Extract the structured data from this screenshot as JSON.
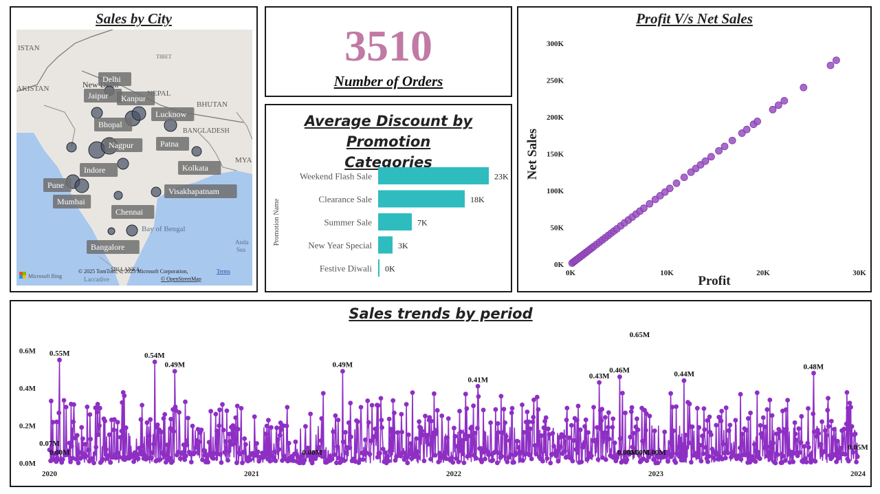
{
  "city_panel": {
    "title": "Sales by City",
    "map_labels": {
      "tibet": "TIBET",
      "istan": "ISTAN",
      "akistan": "AKISTAN",
      "nepal": "NEPAL",
      "bhutan": "BHUTAN",
      "bangladesh": "BANGLADESH",
      "mya": "MYA",
      "new_delhi": "New Delhi",
      "bay_of_bengal": "Bay of Bengal",
      "sri_lanka": "SRI LANKA",
      "laccadive": "Laccadive",
      "andaman": "Anda",
      "andaman2": "Sea"
    },
    "cities": [
      "Delhi",
      "Jaipur",
      "Kanpur",
      "Lucknow",
      "Bhopal",
      "Nagpur",
      "Patna",
      "Indore",
      "Kolkata",
      "Pune",
      "Mumbai",
      "Visakhapatnam",
      "Chennai",
      "Bangalore"
    ],
    "attribution": "© 2025 TomTom, © 2025 Microsoft Corporation,",
    "terms": "Terms",
    "osm": "© OpenStreetMap",
    "bing": "Microsoft Bing"
  },
  "kpi": {
    "value": "3510",
    "label": "Number of Orders",
    "color": "#c07aa4"
  },
  "promo_chart": {
    "title_line1": "Average Discount by Promotion",
    "title_line2": "Categories"
  },
  "scatter_chart": {
    "title": "Profit V/s Net Sales"
  },
  "trend_chart": {
    "title": "Sales trends by period"
  },
  "chart_data": [
    {
      "type": "bar",
      "orientation": "horizontal",
      "ylabel": "Promotion Name",
      "categories": [
        "Weekend Flash Sale",
        "Clearance Sale",
        "Summer Sale",
        "New Year Special",
        "Festive Diwali"
      ],
      "values": [
        23000,
        18000,
        7000,
        3000,
        0
      ],
      "data_labels": [
        "23K",
        "18K",
        "7K",
        "3K",
        "0K"
      ],
      "color": "#2fbcbf",
      "xlim": [
        0,
        30000
      ]
    },
    {
      "type": "scatter",
      "xlabel": "Profit",
      "ylabel": "Net Sales",
      "xlim": [
        0,
        30000
      ],
      "ylim": [
        0,
        300000
      ],
      "x_ticks": [
        "0K",
        "10K",
        "20K",
        "30K"
      ],
      "y_ticks": [
        "0K",
        "50K",
        "100K",
        "150K",
        "200K",
        "250K",
        "300K"
      ],
      "color": "#9a4fc2",
      "points": [
        [
          150,
          1500
        ],
        [
          300,
          3000
        ],
        [
          450,
          4500
        ],
        [
          600,
          6000
        ],
        [
          800,
          8000
        ],
        [
          1000,
          10000
        ],
        [
          1200,
          12000
        ],
        [
          1400,
          14000
        ],
        [
          1600,
          16000
        ],
        [
          1800,
          18000
        ],
        [
          2000,
          20000
        ],
        [
          2200,
          22000
        ],
        [
          2400,
          24000
        ],
        [
          2700,
          27000
        ],
        [
          3000,
          30000
        ],
        [
          3300,
          33000
        ],
        [
          3600,
          36000
        ],
        [
          3900,
          39000
        ],
        [
          4200,
          42000
        ],
        [
          4500,
          45000
        ],
        [
          4800,
          48000
        ],
        [
          5200,
          52000
        ],
        [
          5600,
          56000
        ],
        [
          6000,
          60000
        ],
        [
          6400,
          64000
        ],
        [
          6800,
          68000
        ],
        [
          7200,
          72000
        ],
        [
          7600,
          76000
        ],
        [
          8200,
          82000
        ],
        [
          8800,
          88000
        ],
        [
          9300,
          93000
        ],
        [
          9800,
          98000
        ],
        [
          10300,
          103000
        ],
        [
          11000,
          110000
        ],
        [
          11800,
          118000
        ],
        [
          12500,
          125000
        ],
        [
          13000,
          130000
        ],
        [
          13500,
          135000
        ],
        [
          14000,
          140000
        ],
        [
          14600,
          146000
        ],
        [
          15400,
          154000
        ],
        [
          16000,
          160000
        ],
        [
          16800,
          168000
        ],
        [
          17800,
          178000
        ],
        [
          18300,
          183000
        ],
        [
          19000,
          190000
        ],
        [
          19400,
          194000
        ],
        [
          21000,
          210000
        ],
        [
          21600,
          216000
        ],
        [
          22200,
          222000
        ],
        [
          24200,
          240000
        ],
        [
          27000,
          270000
        ],
        [
          27600,
          277000
        ]
      ]
    },
    {
      "type": "line",
      "x_ticks": [
        "2020",
        "2021",
        "2022",
        "2023",
        "2024"
      ],
      "y_ticks": [
        "0.0M",
        "0.2M",
        "0.4M",
        "0.6M"
      ],
      "ylim": [
        0,
        0.65
      ],
      "xlim": [
        2020,
        2024
      ],
      "color": "#8e2fc4",
      "peaks": [
        {
          "x": 2020.0,
          "y": 0.07,
          "label": "0.07M"
        },
        {
          "x": 2020.05,
          "y": 0.0,
          "label": "0.00M"
        },
        {
          "x": 2020.05,
          "y": 0.55,
          "label": "0.55M"
        },
        {
          "x": 2020.52,
          "y": 0.54,
          "label": "0.54M"
        },
        {
          "x": 2020.62,
          "y": 0.49,
          "label": "0.49M"
        },
        {
          "x": 2021.45,
          "y": 0.49,
          "label": "0.49M"
        },
        {
          "x": 2021.3,
          "y": 0.0,
          "label": "0.00M"
        },
        {
          "x": 2022.12,
          "y": 0.41,
          "label": "0.41M"
        },
        {
          "x": 2022.72,
          "y": 0.43,
          "label": "0.43M"
        },
        {
          "x": 2022.82,
          "y": 0.46,
          "label": "0.46M"
        },
        {
          "x": 2022.92,
          "y": 0.65,
          "label": "0.65M"
        },
        {
          "x": 2022.86,
          "y": 0.0,
          "label": "0.00M"
        },
        {
          "x": 2023.0,
          "y": 0.0,
          "label": "0.00M"
        },
        {
          "x": 2022.92,
          "y": 0.0,
          "label": "0.00M"
        },
        {
          "x": 2023.14,
          "y": 0.44,
          "label": "0.44M"
        },
        {
          "x": 2023.78,
          "y": 0.48,
          "label": "0.48M"
        },
        {
          "x": 2024.0,
          "y": 0.05,
          "label": "0.05M"
        }
      ]
    }
  ]
}
